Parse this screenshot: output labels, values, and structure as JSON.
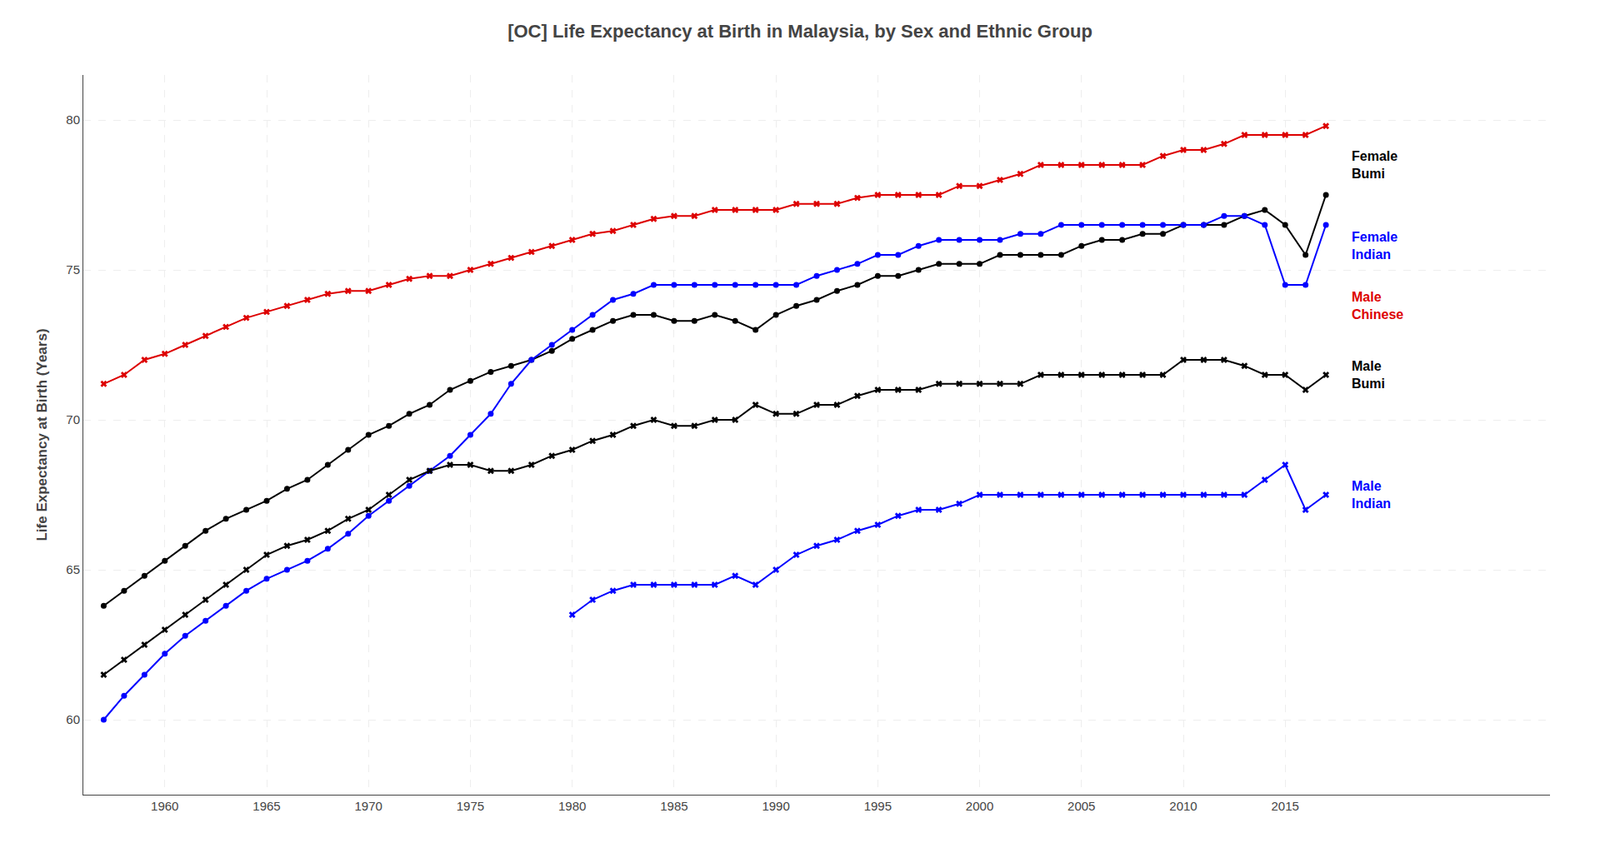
{
  "chart_data": {
    "type": "line",
    "title": "[OC] Life Expectancy at Birth in Malaysia, by Sex and Ethnic Group",
    "ylabel": "Life Expectancy at Birth (Years)",
    "grid": true,
    "xlim": [
      1956,
      2028
    ],
    "xticks": [
      1960,
      1965,
      1970,
      1975,
      1980,
      1985,
      1990,
      1995,
      2000,
      2005,
      2010,
      2015
    ],
    "ylim": [
      57.5,
      81.5
    ],
    "yticks": [
      60,
      65,
      70,
      75,
      80
    ],
    "series": [
      {
        "name": "Male\nChinese",
        "color": "#dd0000",
        "marker": "x",
        "x": [
          1957,
          1958,
          1959,
          1960,
          1961,
          1962,
          1963,
          1964,
          1965,
          1966,
          1967,
          1968,
          1969,
          1970,
          1971,
          1972,
          1973,
          1974,
          1975,
          1976,
          1977,
          1978,
          1979,
          1980,
          1981,
          1982,
          1983,
          1984,
          1985,
          1986,
          1987,
          1988,
          1989,
          1990,
          1991,
          1992,
          1993,
          1994,
          1995,
          1996,
          1997,
          1998,
          1999,
          2000,
          2001,
          2002,
          2003,
          2004,
          2005,
          2006,
          2007,
          2008,
          2009,
          2010,
          2011,
          2012,
          2013,
          2014,
          2015,
          2016,
          2017
        ],
        "values": [
          71.2,
          71.5,
          72.0,
          72.2,
          72.5,
          72.8,
          73.1,
          73.4,
          73.6,
          73.8,
          74.0,
          74.2,
          74.3,
          74.3,
          74.5,
          74.7,
          74.8,
          74.8,
          75.0,
          75.2,
          75.4,
          75.6,
          75.8,
          76.0,
          76.2,
          76.3,
          76.5,
          76.7,
          76.8,
          76.8,
          77.0,
          77.0,
          77.0,
          77.0,
          77.2,
          77.2,
          77.2,
          77.4,
          77.5,
          77.5,
          77.5,
          77.5,
          77.8,
          77.8,
          78.0,
          78.2,
          78.5,
          78.5,
          78.5,
          78.5,
          78.5,
          78.5,
          78.8,
          79.0,
          79.0,
          79.2,
          79.5,
          79.5,
          79.5,
          79.5,
          79.8
        ]
      },
      {
        "name": "Female\nBumi",
        "color": "#000000",
        "marker": "o",
        "x": [
          1957,
          1958,
          1959,
          1960,
          1961,
          1962,
          1963,
          1964,
          1965,
          1966,
          1967,
          1968,
          1969,
          1970,
          1971,
          1972,
          1973,
          1974,
          1975,
          1976,
          1977,
          1978,
          1979,
          1980,
          1981,
          1982,
          1983,
          1984,
          1985,
          1986,
          1987,
          1988,
          1989,
          1990,
          1991,
          1992,
          1993,
          1994,
          1995,
          1996,
          1997,
          1998,
          1999,
          2000,
          2001,
          2002,
          2003,
          2004,
          2005,
          2006,
          2007,
          2008,
          2009,
          2010,
          2011,
          2012,
          2013,
          2014,
          2015,
          2016,
          2017
        ],
        "values": [
          63.8,
          64.3,
          64.8,
          65.3,
          65.8,
          66.3,
          66.7,
          67.0,
          67.3,
          67.7,
          68.0,
          68.5,
          69.0,
          69.5,
          69.8,
          70.2,
          70.5,
          71.0,
          71.3,
          71.6,
          71.8,
          72.0,
          72.3,
          72.7,
          73.0,
          73.3,
          73.5,
          73.5,
          73.3,
          73.3,
          73.5,
          73.3,
          73.0,
          73.5,
          73.8,
          74.0,
          74.3,
          74.5,
          74.8,
          74.8,
          75.0,
          75.2,
          75.2,
          75.2,
          75.5,
          75.5,
          75.5,
          75.5,
          75.8,
          76.0,
          76.0,
          76.2,
          76.2,
          76.5,
          76.5,
          76.5,
          76.8,
          77.0,
          76.5,
          75.5,
          77.5
        ]
      },
      {
        "name": "Female\nIndian",
        "color": "#0000ff",
        "marker": "o",
        "x": [
          1957,
          1958,
          1959,
          1960,
          1961,
          1962,
          1963,
          1964,
          1965,
          1966,
          1967,
          1968,
          1969,
          1970,
          1971,
          1972,
          1973,
          1974,
          1975,
          1976,
          1977,
          1978,
          1979,
          1980,
          1981,
          1982,
          1983,
          1984,
          1985,
          1986,
          1987,
          1988,
          1989,
          1990,
          1991,
          1992,
          1993,
          1994,
          1995,
          1996,
          1997,
          1998,
          1999,
          2000,
          2001,
          2002,
          2003,
          2004,
          2005,
          2006,
          2007,
          2008,
          2009,
          2010,
          2011,
          2012,
          2013,
          2014,
          2015,
          2016,
          2017
        ],
        "values": [
          60.0,
          60.8,
          61.5,
          62.2,
          62.8,
          63.3,
          63.8,
          64.3,
          64.7,
          65.0,
          65.3,
          65.7,
          66.2,
          66.8,
          67.3,
          67.8,
          68.3,
          68.8,
          69.5,
          70.2,
          71.2,
          72.0,
          72.5,
          73.0,
          73.5,
          74.0,
          74.2,
          74.5,
          74.5,
          74.5,
          74.5,
          74.5,
          74.5,
          74.5,
          74.5,
          74.8,
          75.0,
          75.2,
          75.5,
          75.5,
          75.8,
          76.0,
          76.0,
          76.0,
          76.0,
          76.2,
          76.2,
          76.5,
          76.5,
          76.5,
          76.5,
          76.5,
          76.5,
          76.5,
          76.5,
          76.8,
          76.8,
          76.5,
          74.5,
          74.5,
          76.5
        ]
      },
      {
        "name": "Male\nBumi",
        "color": "#000000",
        "marker": "x",
        "x": [
          1957,
          1958,
          1959,
          1960,
          1961,
          1962,
          1963,
          1964,
          1965,
          1966,
          1967,
          1968,
          1969,
          1970,
          1971,
          1972,
          1973,
          1974,
          1975,
          1976,
          1977,
          1978,
          1979,
          1980,
          1981,
          1982,
          1983,
          1984,
          1985,
          1986,
          1987,
          1988,
          1989,
          1990,
          1991,
          1992,
          1993,
          1994,
          1995,
          1996,
          1997,
          1998,
          1999,
          2000,
          2001,
          2002,
          2003,
          2004,
          2005,
          2006,
          2007,
          2008,
          2009,
          2010,
          2011,
          2012,
          2013,
          2014,
          2015,
          2016,
          2017
        ],
        "values": [
          61.5,
          62.0,
          62.5,
          63.0,
          63.5,
          64.0,
          64.5,
          65.0,
          65.5,
          65.8,
          66.0,
          66.3,
          66.7,
          67.0,
          67.5,
          68.0,
          68.3,
          68.5,
          68.5,
          68.3,
          68.3,
          68.5,
          68.8,
          69.0,
          69.3,
          69.5,
          69.8,
          70.0,
          69.8,
          69.8,
          70.0,
          70.0,
          70.5,
          70.2,
          70.2,
          70.5,
          70.5,
          70.8,
          71.0,
          71.0,
          71.0,
          71.2,
          71.2,
          71.2,
          71.2,
          71.2,
          71.5,
          71.5,
          71.5,
          71.5,
          71.5,
          71.5,
          71.5,
          72.0,
          72.0,
          72.0,
          71.8,
          71.5,
          71.5,
          71.0,
          71.5
        ]
      },
      {
        "name": "Male\nIndian",
        "color": "#0000ff",
        "marker": "x",
        "x": [
          1980,
          1981,
          1982,
          1983,
          1984,
          1985,
          1986,
          1987,
          1988,
          1989,
          1990,
          1991,
          1992,
          1993,
          1994,
          1995,
          1996,
          1997,
          1998,
          1999,
          2000,
          2001,
          2002,
          2003,
          2004,
          2005,
          2006,
          2007,
          2008,
          2009,
          2010,
          2011,
          2012,
          2013,
          2014,
          2015,
          2016,
          2017
        ],
        "values": [
          63.5,
          64.0,
          64.3,
          64.5,
          64.5,
          64.5,
          64.5,
          64.5,
          64.8,
          64.5,
          65.0,
          65.5,
          65.8,
          66.0,
          66.3,
          66.5,
          66.8,
          67.0,
          67.0,
          67.2,
          67.5,
          67.5,
          67.5,
          67.5,
          67.5,
          67.5,
          67.5,
          67.5,
          67.5,
          67.5,
          67.5,
          67.5,
          67.5,
          67.5,
          68.0,
          68.5,
          67.0,
          67.5
        ]
      }
    ],
    "annotations": [
      {
        "text": "Female\nBumi",
        "color": "#000000",
        "x": 2018.2,
        "y": 78.5
      },
      {
        "text": "Female\nIndian",
        "color": "#0000ff",
        "x": 2018.2,
        "y": 75.8
      },
      {
        "text": "Male\nChinese",
        "color": "#dd0000",
        "x": 2018.2,
        "y": 73.8
      },
      {
        "text": "Male\nBumi",
        "color": "#000000",
        "x": 2018.2,
        "y": 71.5
      },
      {
        "text": "Male\nIndian",
        "color": "#0000ff",
        "x": 2018.2,
        "y": 67.5
      }
    ]
  }
}
